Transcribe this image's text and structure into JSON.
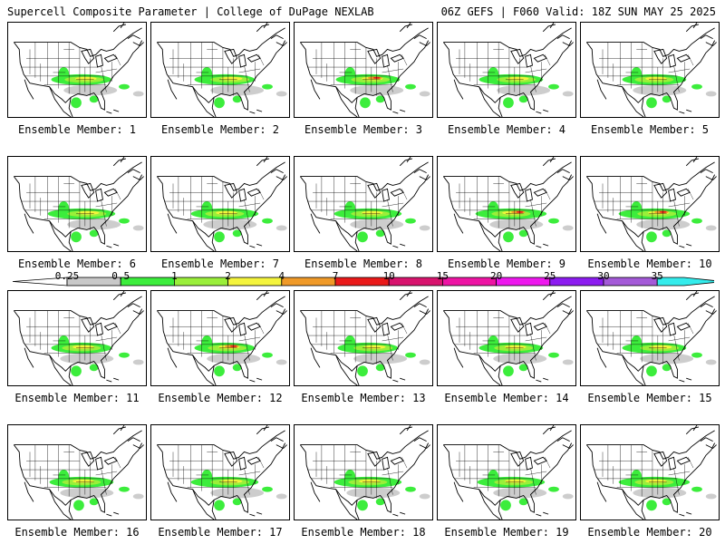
{
  "header": {
    "title_left": "Supercell Composite Parameter | College of DuPage NEXLAB",
    "title_right": "06Z GEFS | F060 Valid: 18Z SUN MAY 25 2025"
  },
  "panel_label_prefix": "Ensemble Member: ",
  "members": [
    "1",
    "2",
    "3",
    "4",
    "5",
    "6",
    "7",
    "8",
    "9",
    "10",
    "11",
    "12",
    "13",
    "14",
    "15",
    "16",
    "17",
    "18",
    "19",
    "20"
  ],
  "colorbar": {
    "labels": [
      "0.25",
      "0.5",
      "1",
      "2",
      "4",
      "7",
      "10",
      "15",
      "20",
      "25",
      "30",
      "35"
    ],
    "colors": [
      "#c8c8c8",
      "#3ced3c",
      "#9aef3a",
      "#f4f43c",
      "#f09a28",
      "#ea1a1a",
      "#d8146e",
      "#ee14a4",
      "#ee18ee",
      "#8c1cf0",
      "#a45ad8",
      "#34ecec"
    ]
  },
  "map_colors": {
    "gray": "#c8c8c8",
    "green": "#3ced3c",
    "lightgreen": "#9aef3a",
    "yellow": "#f4f43c",
    "orange": "#f09a28",
    "red": "#ea1a1a"
  }
}
